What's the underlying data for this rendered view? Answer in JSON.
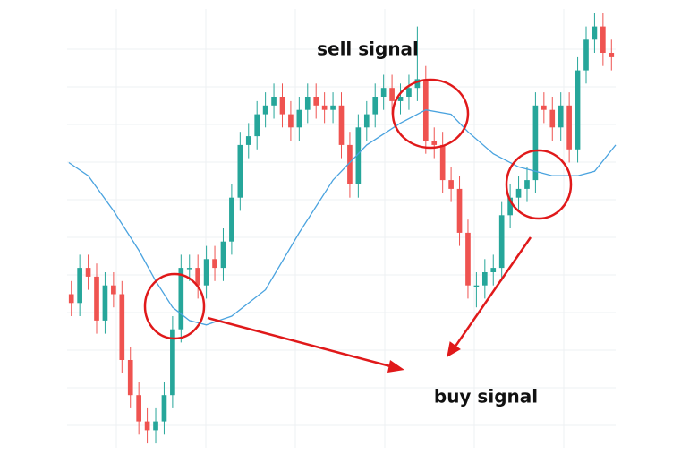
{
  "chart_data": {
    "type": "candlestick",
    "up_color": "#26a69a",
    "down_color": "#ef5350",
    "xlim": [
      -0.5,
      64.5
    ],
    "ylim": [
      0,
      100
    ],
    "open": [
      35,
      33,
      41,
      39,
      29,
      37,
      35,
      20,
      12,
      6,
      4,
      6,
      12,
      27,
      41,
      41,
      37,
      43,
      41,
      47,
      57,
      69,
      71,
      76,
      78,
      80,
      76,
      73,
      77,
      80,
      78,
      77,
      78,
      69,
      60,
      73,
      76,
      80,
      82,
      79,
      80,
      82,
      84,
      70,
      69,
      61,
      59,
      49,
      37,
      37,
      40,
      41,
      53,
      57,
      59,
      61,
      78,
      77,
      73,
      78,
      68,
      86,
      93,
      96,
      90
    ],
    "high": [
      38,
      44,
      44,
      42,
      40,
      40,
      38,
      23,
      15,
      9,
      9,
      15,
      30,
      44,
      44,
      44,
      46,
      46,
      50,
      60,
      72,
      74,
      79,
      81,
      83,
      83,
      79,
      80,
      83,
      83,
      81,
      81,
      81,
      72,
      76,
      79,
      83,
      85,
      85,
      83,
      85,
      96,
      87,
      73,
      72,
      64,
      62,
      52,
      40,
      43,
      44,
      56,
      60,
      62,
      64,
      81,
      81,
      80,
      81,
      81,
      89,
      96,
      99,
      99,
      93
    ],
    "low": [
      30,
      30,
      36,
      26,
      26,
      32,
      17,
      9,
      3,
      1,
      1,
      3,
      9,
      24,
      38,
      34,
      34,
      38,
      38,
      44,
      54,
      66,
      68,
      73,
      75,
      73,
      70,
      70,
      74,
      75,
      74,
      74,
      66,
      57,
      57,
      70,
      73,
      77,
      76,
      76,
      77,
      79,
      67,
      66,
      58,
      56,
      46,
      34,
      32,
      34,
      37,
      38,
      50,
      54,
      56,
      58,
      74,
      70,
      70,
      65,
      65,
      83,
      90,
      87,
      86
    ],
    "close": [
      33,
      41,
      39,
      29,
      37,
      35,
      20,
      12,
      6,
      4,
      6,
      12,
      27,
      41,
      41,
      37,
      43,
      41,
      47,
      57,
      69,
      71,
      76,
      78,
      80,
      76,
      73,
      77,
      80,
      78,
      77,
      78,
      69,
      60,
      73,
      76,
      80,
      82,
      79,
      80,
      82,
      84,
      70,
      69,
      61,
      59,
      49,
      37,
      37,
      40,
      41,
      53,
      57,
      59,
      61,
      78,
      77,
      73,
      78,
      68,
      86,
      93,
      96,
      90,
      89
    ],
    "moving_average": {
      "color": "#4aa3df",
      "x": [
        -0.3,
        2,
        5,
        8,
        10,
        12,
        14,
        16,
        19,
        23,
        27,
        31,
        35,
        39,
        42,
        45,
        47,
        50,
        53,
        57,
        60,
        62,
        64.5
      ],
      "values": [
        65,
        62,
        54,
        45,
        38,
        32,
        29,
        28,
        30,
        36,
        49,
        61,
        69,
        74,
        77,
        76,
        72,
        67,
        64,
        62,
        62,
        63,
        69
      ]
    },
    "annotations": [
      "sell signal",
      "buy signal"
    ]
  }
}
